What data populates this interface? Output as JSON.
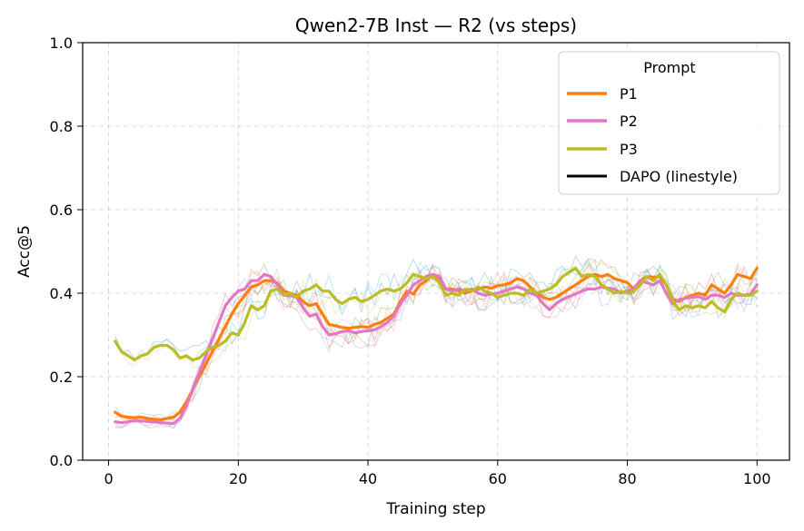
{
  "chart_data": {
    "type": "line",
    "title": "Qwen2-7B Inst — R2 (vs steps)",
    "xlabel": "Training step",
    "ylabel": "Acc@5",
    "xlim": [
      -4,
      105
    ],
    "ylim": [
      0.0,
      1.0
    ],
    "xticks": [
      0,
      20,
      40,
      60,
      80,
      100
    ],
    "yticks": [
      0.0,
      0.2,
      0.4,
      0.6,
      0.8,
      1.0
    ],
    "x_tick_labels": [
      "0",
      "20",
      "40",
      "60",
      "80",
      "100"
    ],
    "y_tick_labels": [
      "0.0",
      "0.2",
      "0.4",
      "0.6",
      "0.8",
      "1.0"
    ],
    "grid": true,
    "legend": {
      "title": "Prompt",
      "placement": "top-right",
      "entries": [
        {
          "label": "P1",
          "color": "#ff7f0e"
        },
        {
          "label": "P2",
          "color": "#e377c2"
        },
        {
          "label": "P3",
          "color": "#bcbd22"
        },
        {
          "label": "DAPO (linestyle)",
          "color": "#000000"
        }
      ]
    },
    "x_start": 1,
    "x_step": 1,
    "series": [
      {
        "name": "P1",
        "color": "#ff7f0e",
        "values": [
          0.115,
          0.105,
          0.103,
          0.102,
          0.103,
          0.1,
          0.098,
          0.097,
          0.1,
          0.103,
          0.115,
          0.14,
          0.17,
          0.2,
          0.23,
          0.26,
          0.29,
          0.32,
          0.35,
          0.375,
          0.395,
          0.415,
          0.42,
          0.43,
          0.43,
          0.425,
          0.405,
          0.4,
          0.395,
          0.38,
          0.37,
          0.375,
          0.35,
          0.325,
          0.322,
          0.318,
          0.316,
          0.318,
          0.32,
          0.318,
          0.325,
          0.33,
          0.34,
          0.35,
          0.38,
          0.405,
          0.398,
          0.42,
          0.43,
          0.445,
          0.43,
          0.41,
          0.41,
          0.405,
          0.4,
          0.405,
          0.41,
          0.415,
          0.412,
          0.418,
          0.42,
          0.425,
          0.435,
          0.43,
          0.415,
          0.4,
          0.39,
          0.385,
          0.39,
          0.4,
          0.41,
          0.42,
          0.43,
          0.44,
          0.445,
          0.44,
          0.445,
          0.435,
          0.43,
          0.425,
          0.41,
          0.43,
          0.44,
          0.438,
          0.44,
          0.42,
          0.385,
          0.38,
          0.39,
          0.395,
          0.4,
          0.395,
          0.42,
          0.41,
          0.4,
          0.42,
          0.445,
          0.44,
          0.435,
          0.46
        ]
      },
      {
        "name": "P2",
        "color": "#e377c2",
        "values": [
          0.092,
          0.09,
          0.092,
          0.095,
          0.094,
          0.093,
          0.092,
          0.09,
          0.089,
          0.088,
          0.1,
          0.13,
          0.17,
          0.21,
          0.25,
          0.29,
          0.33,
          0.37,
          0.39,
          0.405,
          0.41,
          0.43,
          0.43,
          0.445,
          0.44,
          0.42,
          0.395,
          0.395,
          0.39,
          0.365,
          0.345,
          0.35,
          0.32,
          0.3,
          0.303,
          0.308,
          0.31,
          0.305,
          0.308,
          0.31,
          0.312,
          0.32,
          0.33,
          0.345,
          0.375,
          0.395,
          0.42,
          0.43,
          0.44,
          0.445,
          0.44,
          0.41,
          0.405,
          0.41,
          0.405,
          0.41,
          0.4,
          0.395,
          0.398,
          0.4,
          0.405,
          0.41,
          0.415,
          0.41,
          0.4,
          0.395,
          0.375,
          0.36,
          0.375,
          0.385,
          0.392,
          0.398,
          0.405,
          0.41,
          0.41,
          0.415,
          0.412,
          0.41,
          0.4,
          0.405,
          0.41,
          0.43,
          0.425,
          0.42,
          0.43,
          0.4,
          0.375,
          0.385,
          0.388,
          0.39,
          0.392,
          0.385,
          0.395,
          0.395,
          0.39,
          0.4,
          0.395,
          0.395,
          0.398,
          0.42
        ]
      },
      {
        "name": "P3",
        "color": "#bcbd22",
        "values": [
          0.285,
          0.26,
          0.25,
          0.24,
          0.25,
          0.255,
          0.27,
          0.275,
          0.275,
          0.265,
          0.245,
          0.25,
          0.24,
          0.245,
          0.26,
          0.27,
          0.275,
          0.285,
          0.305,
          0.3,
          0.33,
          0.37,
          0.36,
          0.37,
          0.405,
          0.41,
          0.395,
          0.4,
          0.39,
          0.405,
          0.41,
          0.42,
          0.405,
          0.405,
          0.385,
          0.375,
          0.385,
          0.39,
          0.38,
          0.385,
          0.395,
          0.405,
          0.41,
          0.405,
          0.41,
          0.425,
          0.445,
          0.44,
          0.435,
          0.44,
          0.425,
          0.395,
          0.4,
          0.395,
          0.41,
          0.405,
          0.415,
          0.405,
          0.4,
          0.39,
          0.395,
          0.4,
          0.4,
          0.395,
          0.41,
          0.4,
          0.405,
          0.41,
          0.42,
          0.44,
          0.45,
          0.46,
          0.44,
          0.445,
          0.44,
          0.42,
          0.41,
          0.4,
          0.405,
          0.4,
          0.405,
          0.42,
          0.44,
          0.43,
          0.445,
          0.42,
          0.38,
          0.36,
          0.37,
          0.365,
          0.37,
          0.365,
          0.38,
          0.365,
          0.355,
          0.385,
          0.4,
          0.395,
          0.395,
          0.405
        ]
      }
    ]
  }
}
